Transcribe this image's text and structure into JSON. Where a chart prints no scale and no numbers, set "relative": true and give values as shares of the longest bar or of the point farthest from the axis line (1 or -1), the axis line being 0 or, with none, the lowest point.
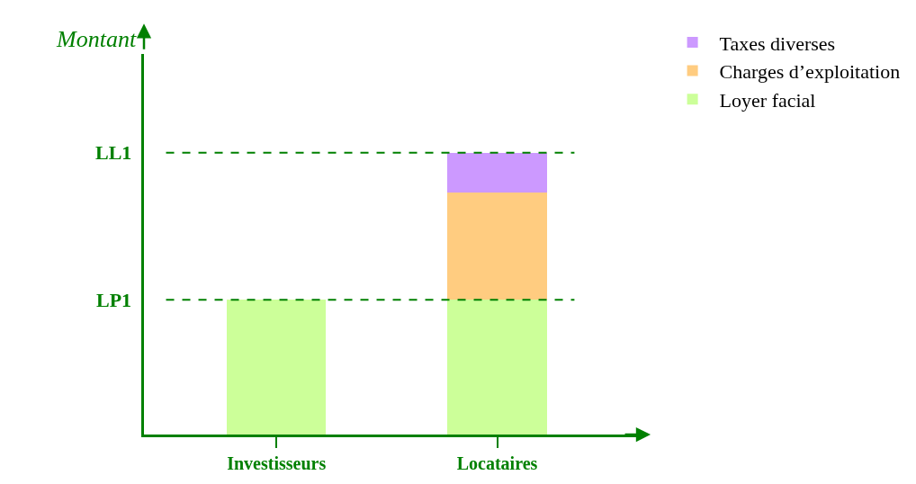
{
  "chart_data": {
    "type": "bar",
    "relative": true,
    "stacked": true,
    "ylabel": "Montant",
    "categories": [
      "Investisseurs",
      "Locataires"
    ],
    "series": [
      {
        "name": "Loyer facial",
        "color": "#ccff99",
        "values": [
          0.478,
          0.478
        ]
      },
      {
        "name": "Charges d’exploitation",
        "color": "#ffcc80",
        "values": [
          null,
          0.38
        ]
      },
      {
        "name": "Taxes diverses",
        "color": "#cc99ff",
        "values": [
          null,
          0.142
        ]
      }
    ],
    "ref_lines": [
      {
        "axis": "y",
        "value": 0.478,
        "label": "LP1",
        "color": "#008000",
        "line_style": "dashed"
      },
      {
        "axis": "y",
        "value": 1,
        "label": "LL1",
        "color": "#008000",
        "line_style": "dashed"
      }
    ],
    "legend": "top right",
    "grid": false
  }
}
